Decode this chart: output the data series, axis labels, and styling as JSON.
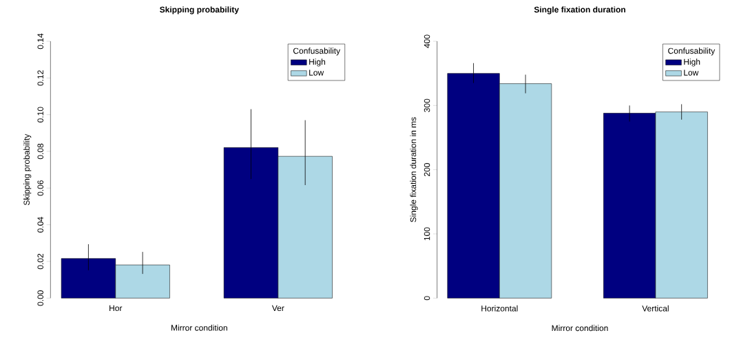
{
  "chart_data": [
    {
      "type": "bar",
      "title": "Skipping probability",
      "xlabel": "Mirror condition",
      "ylabel": "Skipping probability",
      "legend_title": "Confusability",
      "legend": "top right",
      "categories": [
        "Hor",
        "Ver"
      ],
      "ylim": [
        0,
        0.14
      ],
      "yticks": [
        {
          "value": 0,
          "label": "0.00"
        },
        {
          "value": 0.02,
          "label": "0.02"
        },
        {
          "value": 0.04,
          "label": "0.04"
        },
        {
          "value": 0.06,
          "label": "0.06"
        },
        {
          "value": 0.08,
          "label": "0.08"
        },
        {
          "value": 0.1,
          "label": "0.10"
        },
        {
          "value": 0.12,
          "label": "0.12"
        },
        {
          "value": 0.14,
          "label": "0.14"
        }
      ],
      "series": [
        {
          "name": "High",
          "color": "#000080",
          "values": [
            0.0216,
            0.0821
          ],
          "errors": [
            [
              0.0152,
              0.0294
            ],
            [
              0.0649,
              0.103
            ]
          ]
        },
        {
          "name": "Low",
          "color": "#add8e6",
          "values": [
            0.0181,
            0.0773
          ],
          "errors": [
            [
              0.0132,
              0.0252
            ],
            [
              0.0616,
              0.097
            ]
          ]
        }
      ]
    },
    {
      "type": "bar",
      "title": "Single fixation duration",
      "xlabel": "Mirror condition",
      "ylabel": "Single fixation duration in ms",
      "legend_title": "Confusability",
      "legend": "top right",
      "categories": [
        "Horizontal",
        "Vertical"
      ],
      "ylim": [
        0,
        400
      ],
      "yticks": [
        0,
        100,
        200,
        300,
        400
      ],
      "series": [
        {
          "name": "High",
          "color": "#000080",
          "values": [
            350,
            288
          ],
          "errors": [
            [
              335,
              366
            ],
            [
              275,
              300
            ]
          ]
        },
        {
          "name": "Low",
          "color": "#add8e6",
          "values": [
            334,
            290
          ],
          "errors": [
            [
              319,
              348
            ],
            [
              278,
              302
            ]
          ]
        }
      ]
    }
  ]
}
